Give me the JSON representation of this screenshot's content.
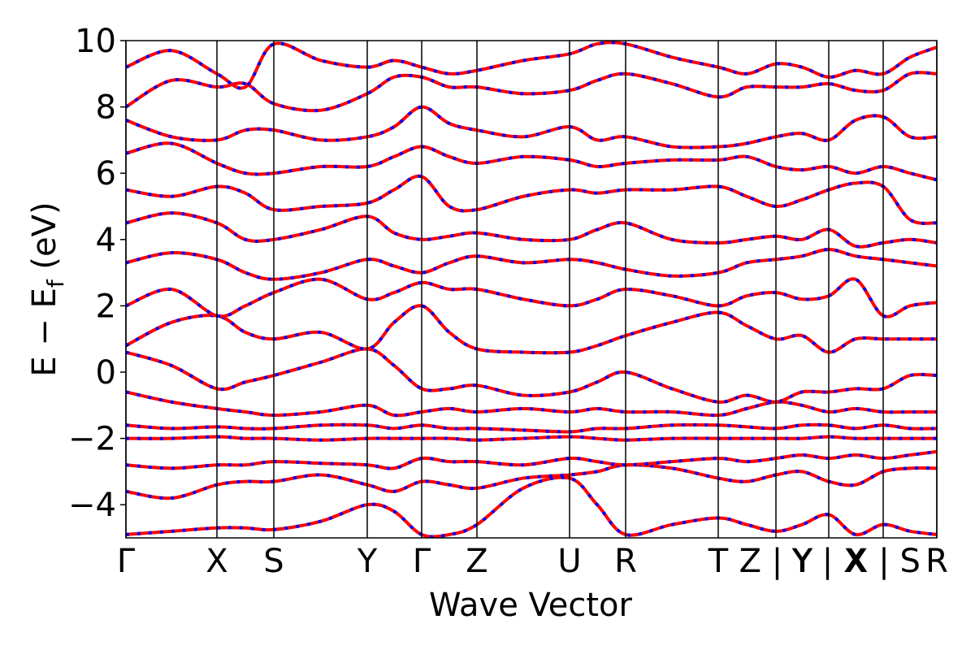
{
  "chart_data": {
    "type": "band-structure",
    "xlabel": "Wave Vector",
    "ylabel": [
      "E − E",
      "f",
      " (eV)"
    ],
    "xlim": [
      0,
      9.98
    ],
    "ylim": [
      -5,
      10
    ],
    "xticks": [
      {
        "value": 0,
        "label": "Γ"
      },
      {
        "value": 1.12,
        "label": "X"
      },
      {
        "value": 1.82,
        "label": "S"
      },
      {
        "value": 2.97,
        "label": "Y"
      },
      {
        "value": 3.64,
        "label": "Γ"
      },
      {
        "value": 4.32,
        "label": "Z"
      },
      {
        "value": 5.46,
        "label": "U"
      },
      {
        "value": 6.15,
        "label": "R"
      },
      {
        "value": 7.29,
        "label": "T"
      },
      {
        "value": 8.0,
        "label": "Z | Y"
      },
      {
        "value": 8.65,
        "label": "Y | X"
      },
      {
        "value": 9.32,
        "label": "X | S"
      },
      {
        "value": 9.98,
        "label": "R"
      }
    ],
    "yticks": [
      {
        "value": -4,
        "label": "−4"
      },
      {
        "value": -2,
        "label": "−2"
      },
      0,
      2,
      4,
      6,
      8,
      10
    ],
    "color": "#ff0000",
    "dash_color": "#0000ff",
    "x": [
      0,
      0.56,
      1.12,
      1.47,
      1.82,
      2.4,
      2.97,
      3.3,
      3.64,
      3.98,
      4.32,
      4.89,
      5.46,
      5.8,
      6.15,
      6.72,
      7.29,
      7.64,
      8.0,
      8.32,
      8.65,
      8.98,
      9.32,
      9.65,
      9.98
    ],
    "series": [
      {
        "values": [
          -4.9,
          -4.8,
          -4.7,
          -4.7,
          -4.75,
          -4.5,
          -4.0,
          -4.2,
          -4.9,
          -4.9,
          -4.6,
          -3.5,
          -3.2,
          -4.0,
          -4.9,
          -4.6,
          -4.4,
          -4.6,
          -4.8,
          -4.6,
          -4.3,
          -4.9,
          -4.6,
          -4.8,
          -4.9
        ]
      },
      {
        "values": [
          -3.6,
          -3.8,
          -3.4,
          -3.3,
          -3.3,
          -3.1,
          -3.4,
          -3.6,
          -3.3,
          -3.4,
          -3.5,
          -3.2,
          -3.1,
          -3.0,
          -2.8,
          -2.9,
          -3.2,
          -3.3,
          -3.1,
          -3.0,
          -3.3,
          -3.4,
          -3.0,
          -2.9,
          -2.9
        ]
      },
      {
        "values": [
          -2.8,
          -2.9,
          -2.8,
          -2.8,
          -2.7,
          -2.75,
          -2.8,
          -2.9,
          -2.6,
          -2.7,
          -2.7,
          -2.8,
          -2.6,
          -2.7,
          -2.8,
          -2.7,
          -2.6,
          -2.7,
          -2.6,
          -2.5,
          -2.6,
          -2.5,
          -2.6,
          -2.5,
          -2.4
        ]
      },
      {
        "values": [
          -2.0,
          -2.0,
          -1.95,
          -2.0,
          -2.0,
          -2.05,
          -2.0,
          -2.0,
          -2.0,
          -2.0,
          -2.05,
          -2.0,
          -1.95,
          -2.0,
          -2.05,
          -2.0,
          -2.0,
          -2.0,
          -2.0,
          -2.0,
          -1.95,
          -2.0,
          -2.0,
          -2.0,
          -2.0
        ]
      },
      {
        "values": [
          -1.6,
          -1.7,
          -1.65,
          -1.7,
          -1.7,
          -1.6,
          -1.6,
          -1.7,
          -1.6,
          -1.7,
          -1.7,
          -1.75,
          -1.8,
          -1.7,
          -1.7,
          -1.6,
          -1.6,
          -1.65,
          -1.7,
          -1.6,
          -1.6,
          -1.7,
          -1.6,
          -1.7,
          -1.7
        ]
      },
      {
        "values": [
          -0.6,
          -0.9,
          -1.1,
          -1.2,
          -1.3,
          -1.2,
          -1.0,
          -1.3,
          -1.2,
          -1.1,
          -1.2,
          -1.1,
          -1.2,
          -1.1,
          -1.2,
          -1.2,
          -1.3,
          -1.1,
          -0.9,
          -1.0,
          -1.2,
          -1.1,
          -1.2,
          -1.2,
          -1.2
        ]
      },
      {
        "values": [
          0.6,
          0.2,
          -0.5,
          -0.3,
          -0.1,
          0.3,
          0.7,
          0.2,
          -0.5,
          -0.5,
          -0.4,
          -0.7,
          -0.6,
          -0.3,
          0.0,
          -0.5,
          -0.9,
          -0.7,
          -0.9,
          -0.6,
          -0.6,
          -0.5,
          -0.5,
          -0.1,
          -0.1
        ]
      },
      {
        "values": [
          0.8,
          1.5,
          1.7,
          1.2,
          1.0,
          1.2,
          0.7,
          1.5,
          2.0,
          1.2,
          0.7,
          0.6,
          0.6,
          0.8,
          1.1,
          1.5,
          1.8,
          1.4,
          1.0,
          1.1,
          0.6,
          1.0,
          1.0,
          1.0,
          1.0
        ]
      },
      {
        "values": [
          2.0,
          2.5,
          1.7,
          2.0,
          2.4,
          2.8,
          2.2,
          2.4,
          2.7,
          2.5,
          2.5,
          2.2,
          2.0,
          2.2,
          2.5,
          2.3,
          2.0,
          2.3,
          2.4,
          2.2,
          2.3,
          2.8,
          1.7,
          2.0,
          2.1
        ]
      },
      {
        "values": [
          3.3,
          3.6,
          3.4,
          3.0,
          2.8,
          3.0,
          3.4,
          3.2,
          3.0,
          3.3,
          3.5,
          3.3,
          3.4,
          3.3,
          3.1,
          2.9,
          3.0,
          3.3,
          3.4,
          3.5,
          3.7,
          3.5,
          3.4,
          3.3,
          3.2
        ]
      },
      {
        "values": [
          4.5,
          4.8,
          4.5,
          4.0,
          4.0,
          4.3,
          4.7,
          4.2,
          4.0,
          4.1,
          4.2,
          4.0,
          4.0,
          4.3,
          4.5,
          4.0,
          3.9,
          4.0,
          4.1,
          4.0,
          4.3,
          3.8,
          3.9,
          4.0,
          3.9
        ]
      },
      {
        "values": [
          5.5,
          5.3,
          5.6,
          5.4,
          4.9,
          5.0,
          5.1,
          5.5,
          5.9,
          5.0,
          4.9,
          5.3,
          5.5,
          5.4,
          5.5,
          5.5,
          5.6,
          5.3,
          5.0,
          5.2,
          5.5,
          5.7,
          5.6,
          4.6,
          4.5
        ]
      },
      {
        "values": [
          6.6,
          6.9,
          6.3,
          6.0,
          6.0,
          6.2,
          6.2,
          6.5,
          6.8,
          6.5,
          6.3,
          6.5,
          6.4,
          6.2,
          6.3,
          6.4,
          6.4,
          6.5,
          6.2,
          6.1,
          6.2,
          6.0,
          6.2,
          6.0,
          5.8
        ]
      },
      {
        "values": [
          7.6,
          7.1,
          7.0,
          7.3,
          7.3,
          7.0,
          7.1,
          7.4,
          8.0,
          7.5,
          7.3,
          7.1,
          7.4,
          7.0,
          7.1,
          6.8,
          6.8,
          6.9,
          7.1,
          7.2,
          7.0,
          7.6,
          7.7,
          7.1,
          7.1
        ]
      },
      {
        "values": [
          8.0,
          8.8,
          8.6,
          8.7,
          8.1,
          7.9,
          8.4,
          8.9,
          8.9,
          8.6,
          8.6,
          8.4,
          8.5,
          8.8,
          9.0,
          8.7,
          8.3,
          8.6,
          8.6,
          8.6,
          8.7,
          8.5,
          8.5,
          9.0,
          9.0
        ]
      },
      {
        "values": [
          9.2,
          9.7,
          9.0,
          8.6,
          9.9,
          9.4,
          9.2,
          9.4,
          9.2,
          9.0,
          9.1,
          9.4,
          9.6,
          9.9,
          9.9,
          9.5,
          9.2,
          9.0,
          9.3,
          9.2,
          8.9,
          9.1,
          9.0,
          9.5,
          9.8
        ]
      }
    ]
  }
}
